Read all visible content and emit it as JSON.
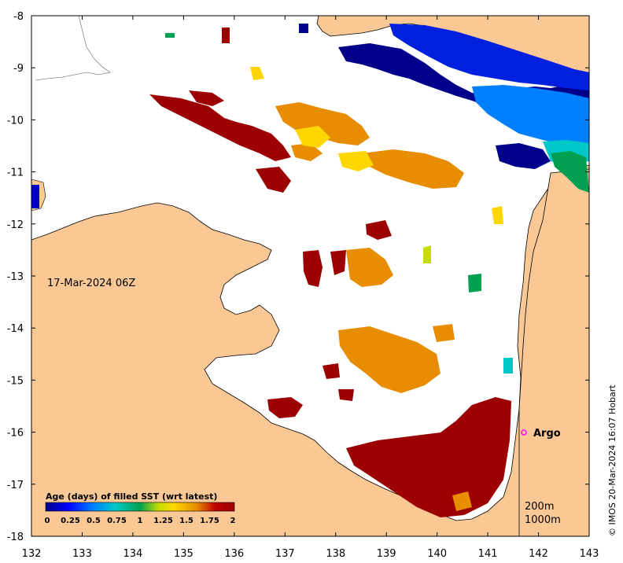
{
  "map": {
    "date_label": "17-Mar-2024 06Z",
    "x_ticks": [
      "132",
      "133",
      "134",
      "135",
      "136",
      "137",
      "138",
      "139",
      "140",
      "141",
      "142",
      "143"
    ],
    "y_ticks": [
      "-8",
      "-9",
      "-10",
      "-11",
      "-12",
      "-13",
      "-14",
      "-15",
      "-16",
      "-17",
      "-18"
    ],
    "argo_label": "Argo",
    "depth_labels": [
      "200m",
      "1000m"
    ],
    "credit": "© IMOS 20-Mar-2024 16:07 Hobart"
  },
  "colorbar": {
    "title": "Age (days) of filled SST (wrt latest)",
    "ticks": [
      "0",
      "0.25",
      "0.5",
      "0.75",
      "1",
      "1.25",
      "1.5",
      "1.75",
      "2"
    ],
    "colors": [
      "#00008b",
      "#0000ff",
      "#0080ff",
      "#00c8c8",
      "#00a050",
      "#c8dc00",
      "#ffd700",
      "#e88c00",
      "#c00000",
      "#9c0000"
    ]
  },
  "colors": {
    "land": "#f9c895",
    "sea": "#ffffff",
    "argo_marker": "#ff00ff"
  }
}
